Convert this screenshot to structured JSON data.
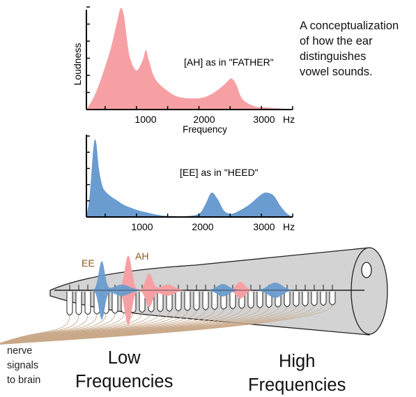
{
  "caption": {
    "lines": [
      "A conceptualization",
      "of how the ear",
      "distinguishes",
      "vowel sounds."
    ]
  },
  "spectrum_top": {
    "label": "[AH] as in \"FATHER\"",
    "ylabel": "Loudness",
    "xlabel": "Frequency",
    "ticks": [
      "1000",
      "2000",
      "3000"
    ],
    "unit": "Hz",
    "color": "#f7a0a4"
  },
  "spectrum_bottom": {
    "label": "[EE] as in \"HEED\"",
    "ticks": [
      "1000",
      "2000",
      "3000"
    ],
    "unit": "Hz",
    "color": "#6a9cd0"
  },
  "cochlea": {
    "ee_label": "EE",
    "ah_label": "AH",
    "nerve_lines": [
      "nerve",
      "signals",
      "to brain"
    ],
    "low_lines": [
      "Low",
      "Frequencies"
    ],
    "high_lines": [
      "High",
      "Frequencies"
    ],
    "body_color": "#d3d3d3",
    "label_color": "#8a5a1a"
  },
  "chart_data": [
    {
      "type": "area",
      "title": "[AH] as in \"FATHER\"",
      "xlabel": "Frequency",
      "ylabel": "Loudness",
      "x_ticks": [
        1000,
        2000,
        3000
      ],
      "x_unit": "Hz",
      "xlim": [
        200,
        3500
      ],
      "ylim": [
        0,
        1
      ],
      "grid": false,
      "series": [
        {
          "x": [
            200,
            300,
            400,
            500,
            600,
            700,
            750,
            800,
            850,
            900,
            1000,
            1100,
            1150,
            1200,
            1300,
            1500,
            1700,
            2000,
            2200,
            2400,
            2500,
            2550,
            2600,
            2700,
            2900,
            3100,
            3300,
            3500
          ],
          "y": [
            0.0,
            0.1,
            0.24,
            0.42,
            0.62,
            0.88,
            0.99,
            0.92,
            0.68,
            0.5,
            0.38,
            0.48,
            0.58,
            0.48,
            0.3,
            0.18,
            0.12,
            0.11,
            0.15,
            0.24,
            0.3,
            0.29,
            0.24,
            0.1,
            0.03,
            0.02,
            0.01,
            0.0
          ]
        }
      ]
    },
    {
      "type": "area",
      "title": "[EE] as in \"HEED\"",
      "x_ticks": [
        1000,
        2000,
        3000
      ],
      "x_unit": "Hz",
      "xlim": [
        200,
        3500
      ],
      "ylim": [
        0,
        1
      ],
      "grid": false,
      "series": [
        {
          "x": [
            200,
            250,
            300,
            330,
            360,
            400,
            450,
            500,
            600,
            700,
            800,
            1000,
            1200,
            1400,
            1600,
            1800,
            2000,
            2100,
            2200,
            2300,
            2400,
            2500,
            2600,
            2800,
            3000,
            3100,
            3200,
            3300,
            3400,
            3500
          ],
          "y": [
            0.0,
            0.25,
            0.75,
            0.95,
            0.9,
            0.6,
            0.4,
            0.32,
            0.25,
            0.2,
            0.15,
            0.09,
            0.05,
            0.02,
            0.01,
            0.01,
            0.04,
            0.15,
            0.3,
            0.22,
            0.08,
            0.04,
            0.06,
            0.15,
            0.28,
            0.3,
            0.26,
            0.14,
            0.05,
            0.0
          ]
        }
      ]
    }
  ]
}
